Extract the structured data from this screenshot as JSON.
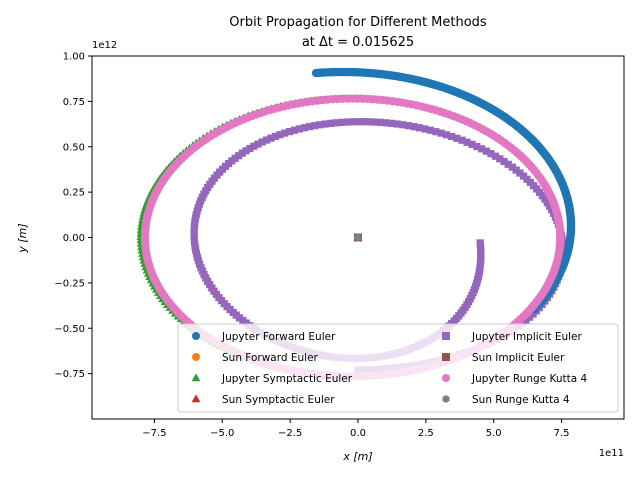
{
  "chart_data": {
    "type": "scatter",
    "title": "Orbit Propagation for Different Methods",
    "subtitle": "at Δt = 0.015625",
    "xlabel": "x [m]",
    "ylabel": "y [m]",
    "x_scale_label": "1e11",
    "y_scale_label": "1e12",
    "x_unit_scale": 100000000000.0,
    "y_unit_scale": 1000000000000.0,
    "xlim": [
      -9.8,
      9.8
    ],
    "ylim": [
      -1.0,
      1.0
    ],
    "x_ticks": [
      -7.5,
      -5.0,
      -2.5,
      0.0,
      2.5,
      5.0,
      7.5
    ],
    "x_tick_labels": [
      "−7.5",
      "−5.0",
      "−2.5",
      "0.0",
      "2.5",
      "5.0",
      "7.5"
    ],
    "y_ticks": [
      -0.75,
      -0.5,
      -0.25,
      0.0,
      0.25,
      0.5,
      0.75,
      1.0
    ],
    "y_tick_labels": [
      "−0.75",
      "−0.50",
      "−0.25",
      "0.00",
      "0.25",
      "0.50",
      "0.75",
      "1.00"
    ],
    "grid": false,
    "legend_position": "lower-right",
    "legend_columns": 2,
    "series": [
      {
        "name": "Jupyter Forward Euler",
        "color": "#1f77b4",
        "marker": "circle",
        "orbit": {
          "center": [
            0.0,
            0.0
          ],
          "r_start": [
            7.5,
            0.79
          ],
          "r_end": [
            8.9,
            0.92
          ],
          "theta_start_deg": -30,
          "theta_end_deg": 100
        }
      },
      {
        "name": "Sun Forward Euler",
        "color": "#ff7f0e",
        "marker": "circle",
        "points": [
          [
            0.0,
            0.0
          ]
        ]
      },
      {
        "name": "Jupyter Symptactic Euler",
        "color": "#2ca02c",
        "marker": "triangle",
        "orbit": {
          "center": [
            -0.28,
            0.0
          ],
          "r_start": [
            7.75,
            0.77
          ],
          "r_end": [
            7.75,
            0.77
          ],
          "theta_start_deg": 0,
          "theta_end_deg": 360
        }
      },
      {
        "name": "Sun Symptactic Euler",
        "color": "#d62728",
        "marker": "triangle",
        "points": [
          [
            0.0,
            0.0
          ]
        ]
      },
      {
        "name": "Jupyter Implicit Euler",
        "color": "#9467bd",
        "marker": "square",
        "orbit": {
          "center": [
            0.0,
            -0.03
          ],
          "r_start": [
            8.3,
            0.7
          ],
          "r_end": [
            4.5,
            0.62
          ],
          "theta_start_deg": -90,
          "theta_end_deg": 360
        }
      },
      {
        "name": "Sun Implicit Euler",
        "color": "#8c564b",
        "marker": "square",
        "points": [
          [
            0.0,
            0.0
          ]
        ]
      },
      {
        "name": "Jupyter Runge Kutta 4",
        "color": "#e377c2",
        "marker": "circle",
        "orbit": {
          "center": [
            -0.2,
            0.0
          ],
          "r_start": [
            7.65,
            0.765
          ],
          "r_end": [
            7.65,
            0.765
          ],
          "theta_start_deg": 0,
          "theta_end_deg": 360
        }
      },
      {
        "name": "Sun Runge Kutta 4",
        "color": "#7f7f7f",
        "marker": "hexagon",
        "points": [
          [
            0.0,
            0.0
          ]
        ]
      }
    ]
  }
}
